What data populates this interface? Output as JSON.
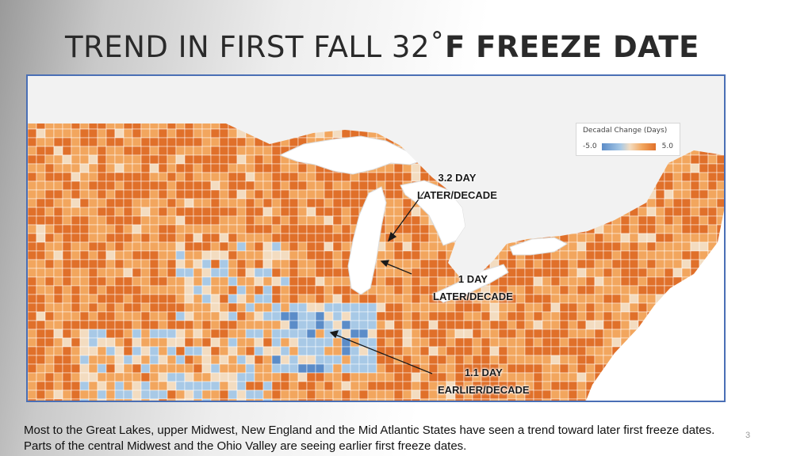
{
  "title": {
    "part1": "TREND IN FIRST FALL 32˚",
    "part2": "F FREEZE DATE"
  },
  "legend": {
    "title": "Decadal Change (Days)",
    "min": "-5.0",
    "max": "5.0"
  },
  "annotations": [
    {
      "value": "3.2 DAY",
      "label": "LATER/DECADE"
    },
    {
      "value": "1 DAY",
      "label": "LATER/DECADE"
    },
    {
      "value": "1.1 DAY",
      "label": "EARLIER/DECADE"
    }
  ],
  "caption": "Most to the Great Lakes, upper Midwest, New England and the Mid Atlantic States have seen a trend toward later first freeze dates.  Parts of the central Midwest and the Ohio Valley are seeing earlier first freeze dates.",
  "slide_number": "3",
  "colors": {
    "later_strong": "#e0702a",
    "later_mid": "#f2a65e",
    "neutral": "#f3dcc0",
    "earlier": "#a8c9e6",
    "earlier_strong": "#5b8cc8",
    "water": "#ffffff",
    "frame": "#4a6fb5"
  }
}
